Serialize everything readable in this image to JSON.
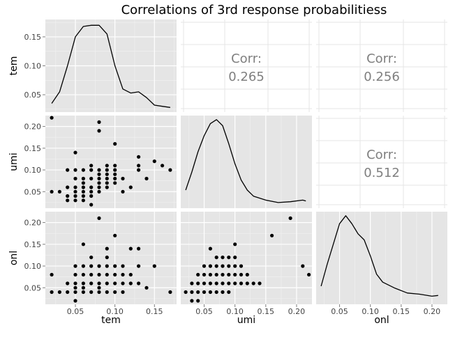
{
  "chart_data": {
    "type": "scatter",
    "title": "Correlations of 3rd response probabilitiess",
    "variables": [
      "tem",
      "umi",
      "onl"
    ],
    "axes": {
      "tem": {
        "lim": [
          0.012,
          0.178
        ],
        "ticks": [
          0.05,
          0.1,
          0.15
        ],
        "ticklabels": [
          "0.05",
          "0.10",
          "0.15"
        ]
      },
      "umi": {
        "lim": [
          0.012,
          0.225
        ],
        "ticks": [
          0.05,
          0.1,
          0.15,
          0.2
        ],
        "ticklabels": [
          "0.05",
          "0.10",
          "0.15",
          "0.20"
        ]
      },
      "onl": {
        "lim": [
          0.012,
          0.225
        ],
        "ticks": [
          0.05,
          0.1,
          0.15,
          0.2
        ],
        "ticklabels": [
          "0.05",
          "0.10",
          "0.15",
          "0.20"
        ]
      }
    },
    "density_ylim": {
      "tem": [
        0.02,
        0.18
      ],
      "umi": [
        0.0,
        0.23
      ],
      "onl": [
        0.0,
        0.23
      ]
    },
    "tem_density_ticks": [
      0.05,
      0.1,
      0.15
    ],
    "tem_density_ticklabels": [
      "0.05",
      "0.10",
      "0.15"
    ],
    "correlations": [
      {
        "pair": [
          "tem",
          "umi"
        ],
        "label": "Corr:",
        "value": "0.265"
      },
      {
        "pair": [
          "tem",
          "onl"
        ],
        "label": "Corr:",
        "value": "0.256"
      },
      {
        "pair": [
          "umi",
          "onl"
        ],
        "label": "Corr:",
        "value": "0.512"
      }
    ],
    "densities": {
      "tem": [
        [
          0.02,
          0.035
        ],
        [
          0.03,
          0.055
        ],
        [
          0.04,
          0.1
        ],
        [
          0.05,
          0.15
        ],
        [
          0.06,
          0.168
        ],
        [
          0.07,
          0.17
        ],
        [
          0.08,
          0.17
        ],
        [
          0.09,
          0.155
        ],
        [
          0.1,
          0.1
        ],
        [
          0.11,
          0.06
        ],
        [
          0.12,
          0.053
        ],
        [
          0.13,
          0.055
        ],
        [
          0.14,
          0.045
        ],
        [
          0.15,
          0.032
        ],
        [
          0.16,
          0.03
        ],
        [
          0.17,
          0.028
        ]
      ],
      "umi": [
        [
          0.02,
          0.045
        ],
        [
          0.03,
          0.09
        ],
        [
          0.04,
          0.14
        ],
        [
          0.05,
          0.18
        ],
        [
          0.06,
          0.21
        ],
        [
          0.07,
          0.22
        ],
        [
          0.08,
          0.205
        ],
        [
          0.09,
          0.16
        ],
        [
          0.1,
          0.11
        ],
        [
          0.11,
          0.07
        ],
        [
          0.12,
          0.045
        ],
        [
          0.13,
          0.03
        ],
        [
          0.15,
          0.02
        ],
        [
          0.17,
          0.014
        ],
        [
          0.19,
          0.016
        ],
        [
          0.21,
          0.02
        ],
        [
          0.215,
          0.018
        ]
      ],
      "onl": [
        [
          0.02,
          0.045
        ],
        [
          0.03,
          0.1
        ],
        [
          0.04,
          0.15
        ],
        [
          0.05,
          0.2
        ],
        [
          0.06,
          0.22
        ],
        [
          0.07,
          0.2
        ],
        [
          0.08,
          0.175
        ],
        [
          0.09,
          0.16
        ],
        [
          0.1,
          0.12
        ],
        [
          0.11,
          0.075
        ],
        [
          0.12,
          0.055
        ],
        [
          0.14,
          0.04
        ],
        [
          0.16,
          0.028
        ],
        [
          0.18,
          0.025
        ],
        [
          0.2,
          0.02
        ],
        [
          0.21,
          0.022
        ]
      ]
    },
    "scatter": {
      "tem_umi": [
        [
          0.02,
          0.22
        ],
        [
          0.02,
          0.05
        ],
        [
          0.03,
          0.05
        ],
        [
          0.04,
          0.1
        ],
        [
          0.04,
          0.04
        ],
        [
          0.04,
          0.03
        ],
        [
          0.04,
          0.06
        ],
        [
          0.05,
          0.14
        ],
        [
          0.05,
          0.1
        ],
        [
          0.05,
          0.08
        ],
        [
          0.05,
          0.06
        ],
        [
          0.05,
          0.05
        ],
        [
          0.05,
          0.04
        ],
        [
          0.05,
          0.03
        ],
        [
          0.06,
          0.1
        ],
        [
          0.06,
          0.08
        ],
        [
          0.06,
          0.07
        ],
        [
          0.06,
          0.06
        ],
        [
          0.06,
          0.05
        ],
        [
          0.06,
          0.04
        ],
        [
          0.06,
          0.03
        ],
        [
          0.07,
          0.11
        ],
        [
          0.07,
          0.1
        ],
        [
          0.07,
          0.08
        ],
        [
          0.07,
          0.06
        ],
        [
          0.07,
          0.05
        ],
        [
          0.07,
          0.04
        ],
        [
          0.07,
          0.02
        ],
        [
          0.08,
          0.21
        ],
        [
          0.08,
          0.19
        ],
        [
          0.08,
          0.1
        ],
        [
          0.08,
          0.09
        ],
        [
          0.08,
          0.08
        ],
        [
          0.08,
          0.07
        ],
        [
          0.08,
          0.06
        ],
        [
          0.08,
          0.05
        ],
        [
          0.09,
          0.11
        ],
        [
          0.09,
          0.1
        ],
        [
          0.09,
          0.09
        ],
        [
          0.09,
          0.08
        ],
        [
          0.09,
          0.07
        ],
        [
          0.09,
          0.06
        ],
        [
          0.1,
          0.16
        ],
        [
          0.1,
          0.11
        ],
        [
          0.1,
          0.1
        ],
        [
          0.1,
          0.09
        ],
        [
          0.1,
          0.08
        ],
        [
          0.1,
          0.07
        ],
        [
          0.11,
          0.08
        ],
        [
          0.11,
          0.05
        ],
        [
          0.12,
          0.06
        ],
        [
          0.13,
          0.13
        ],
        [
          0.13,
          0.11
        ],
        [
          0.13,
          0.1
        ],
        [
          0.14,
          0.08
        ],
        [
          0.15,
          0.12
        ],
        [
          0.16,
          0.11
        ],
        [
          0.17,
          0.1
        ]
      ],
      "tem_onl": [
        [
          0.02,
          0.08
        ],
        [
          0.02,
          0.04
        ],
        [
          0.03,
          0.04
        ],
        [
          0.04,
          0.06
        ],
        [
          0.04,
          0.04
        ],
        [
          0.05,
          0.1
        ],
        [
          0.05,
          0.08
        ],
        [
          0.05,
          0.06
        ],
        [
          0.05,
          0.05
        ],
        [
          0.05,
          0.04
        ],
        [
          0.05,
          0.02
        ],
        [
          0.06,
          0.15
        ],
        [
          0.06,
          0.1
        ],
        [
          0.06,
          0.08
        ],
        [
          0.06,
          0.06
        ],
        [
          0.06,
          0.05
        ],
        [
          0.06,
          0.04
        ],
        [
          0.07,
          0.12
        ],
        [
          0.07,
          0.1
        ],
        [
          0.07,
          0.08
        ],
        [
          0.07,
          0.06
        ],
        [
          0.07,
          0.04
        ],
        [
          0.08,
          0.21
        ],
        [
          0.08,
          0.1
        ],
        [
          0.08,
          0.08
        ],
        [
          0.08,
          0.06
        ],
        [
          0.08,
          0.05
        ],
        [
          0.08,
          0.04
        ],
        [
          0.09,
          0.14
        ],
        [
          0.09,
          0.12
        ],
        [
          0.09,
          0.1
        ],
        [
          0.09,
          0.08
        ],
        [
          0.09,
          0.06
        ],
        [
          0.09,
          0.04
        ],
        [
          0.1,
          0.17
        ],
        [
          0.1,
          0.1
        ],
        [
          0.1,
          0.08
        ],
        [
          0.1,
          0.06
        ],
        [
          0.1,
          0.04
        ],
        [
          0.11,
          0.1
        ],
        [
          0.11,
          0.08
        ],
        [
          0.11,
          0.06
        ],
        [
          0.11,
          0.04
        ],
        [
          0.12,
          0.14
        ],
        [
          0.12,
          0.08
        ],
        [
          0.12,
          0.06
        ],
        [
          0.13,
          0.14
        ],
        [
          0.13,
          0.1
        ],
        [
          0.13,
          0.06
        ],
        [
          0.14,
          0.05
        ],
        [
          0.15,
          0.1
        ],
        [
          0.17,
          0.04
        ]
      ],
      "umi_onl": [
        [
          0.02,
          0.04
        ],
        [
          0.03,
          0.04
        ],
        [
          0.03,
          0.02
        ],
        [
          0.03,
          0.06
        ],
        [
          0.04,
          0.08
        ],
        [
          0.04,
          0.06
        ],
        [
          0.04,
          0.04
        ],
        [
          0.04,
          0.02
        ],
        [
          0.05,
          0.1
        ],
        [
          0.05,
          0.08
        ],
        [
          0.05,
          0.06
        ],
        [
          0.05,
          0.04
        ],
        [
          0.06,
          0.14
        ],
        [
          0.06,
          0.1
        ],
        [
          0.06,
          0.08
        ],
        [
          0.06,
          0.06
        ],
        [
          0.06,
          0.04
        ],
        [
          0.07,
          0.12
        ],
        [
          0.07,
          0.1
        ],
        [
          0.07,
          0.08
        ],
        [
          0.07,
          0.06
        ],
        [
          0.07,
          0.04
        ],
        [
          0.08,
          0.12
        ],
        [
          0.08,
          0.1
        ],
        [
          0.08,
          0.08
        ],
        [
          0.08,
          0.06
        ],
        [
          0.08,
          0.04
        ],
        [
          0.09,
          0.12
        ],
        [
          0.09,
          0.1
        ],
        [
          0.09,
          0.08
        ],
        [
          0.09,
          0.06
        ],
        [
          0.09,
          0.04
        ],
        [
          0.1,
          0.15
        ],
        [
          0.1,
          0.12
        ],
        [
          0.1,
          0.1
        ],
        [
          0.1,
          0.08
        ],
        [
          0.1,
          0.06
        ],
        [
          0.11,
          0.1
        ],
        [
          0.11,
          0.08
        ],
        [
          0.11,
          0.06
        ],
        [
          0.12,
          0.08
        ],
        [
          0.12,
          0.06
        ],
        [
          0.13,
          0.06
        ],
        [
          0.14,
          0.06
        ],
        [
          0.16,
          0.17
        ],
        [
          0.19,
          0.21
        ],
        [
          0.21,
          0.1
        ],
        [
          0.22,
          0.08
        ]
      ]
    }
  }
}
